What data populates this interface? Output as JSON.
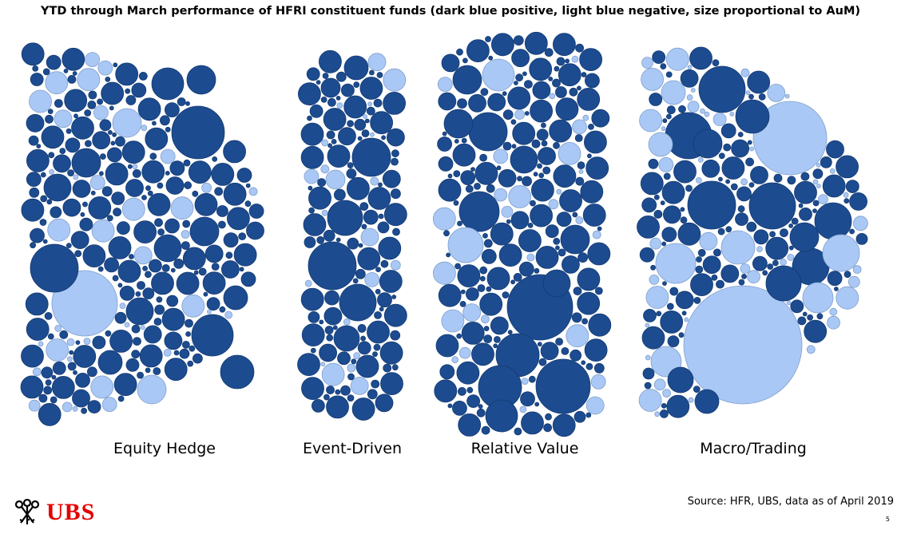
{
  "title": "YTD through March performance of HFRI constituent funds (dark blue positive, light blue negative, size proportional to AuM)",
  "colors": {
    "positive": "#1d4b8f",
    "negative": "#aac8f5",
    "stroke_positive": "#123a73",
    "stroke_negative": "#7f9fcc"
  },
  "chart_data": {
    "type": "bubble-cluster",
    "title": "YTD through March performance of HFRI constituent funds (dark blue positive, light blue negative, size proportional to AuM)",
    "encoding": {
      "dark blue": "positive",
      "light blue": "negative",
      "size": "proportional to AuM"
    },
    "categories": [
      "Equity Hedge",
      "Event-Driven",
      "Relative Value",
      "Macro/Trading"
    ]
  },
  "source": "Source: HFR, UBS, data as of April 2019",
  "page_number": "5",
  "logo": {
    "text": "UBS"
  }
}
